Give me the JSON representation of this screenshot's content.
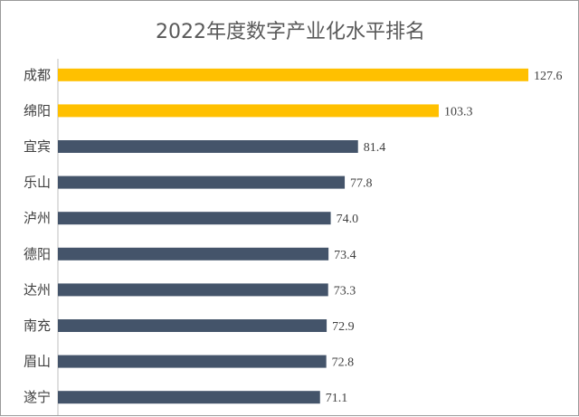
{
  "chart_data": {
    "type": "bar",
    "orientation": "horizontal",
    "title": "2022年度数字产业化水平排名",
    "categories": [
      "成都",
      "绵阳",
      "宜宾",
      "乐山",
      "泸州",
      "德阳",
      "达州",
      "南充",
      "眉山",
      "遂宁"
    ],
    "values": [
      127.6,
      103.3,
      81.4,
      77.8,
      74.0,
      73.4,
      73.3,
      72.9,
      72.8,
      71.1
    ],
    "value_labels": [
      "127.6",
      "103.3",
      "81.4",
      "77.8",
      "74.0",
      "73.4",
      "73.3",
      "72.9",
      "72.8",
      "71.1"
    ],
    "bar_colors": [
      "#FFC000",
      "#FFC000",
      "#44546A",
      "#44546A",
      "#44546A",
      "#44546A",
      "#44546A",
      "#44546A",
      "#44546A",
      "#44546A"
    ],
    "xlim": [
      0,
      127.6
    ],
    "grid": false,
    "legend": "none"
  }
}
